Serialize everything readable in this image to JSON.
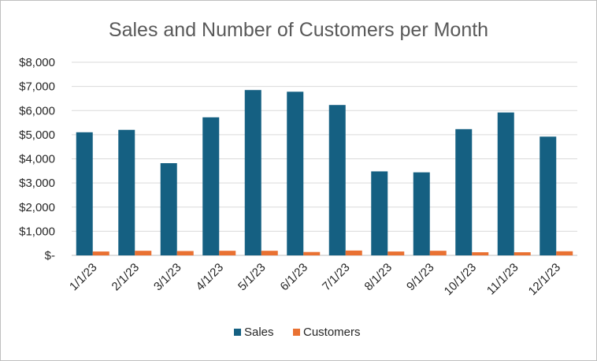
{
  "chart_data": {
    "type": "bar",
    "title": "Sales and Number of Customers per Month",
    "categories": [
      "1/1/23",
      "2/1/23",
      "3/1/23",
      "4/1/23",
      "5/1/23",
      "6/1/23",
      "7/1/23",
      "8/1/23",
      "9/1/23",
      "10/1/23",
      "11/1/23",
      "12/1/23"
    ],
    "series": [
      {
        "name": "Sales",
        "color": "#156082",
        "values": [
          5100,
          5200,
          3820,
          5720,
          6850,
          6780,
          6230,
          3480,
          3440,
          5230,
          5920,
          4920
        ]
      },
      {
        "name": "Customers",
        "color": "#E97132",
        "values": [
          160,
          190,
          180,
          190,
          190,
          140,
          200,
          160,
          190,
          130,
          130,
          170
        ]
      }
    ],
    "ylim": [
      0,
      8000
    ],
    "yticks": [
      0,
      1000,
      2000,
      3000,
      4000,
      5000,
      6000,
      7000,
      8000
    ],
    "ytick_labels": [
      "$-",
      "$1,000",
      "$2,000",
      "$3,000",
      "$4,000",
      "$5,000",
      "$6,000",
      "$7,000",
      "$8,000"
    ],
    "grid": true,
    "legend_position": "bottom",
    "xlabel": "",
    "ylabel": ""
  }
}
